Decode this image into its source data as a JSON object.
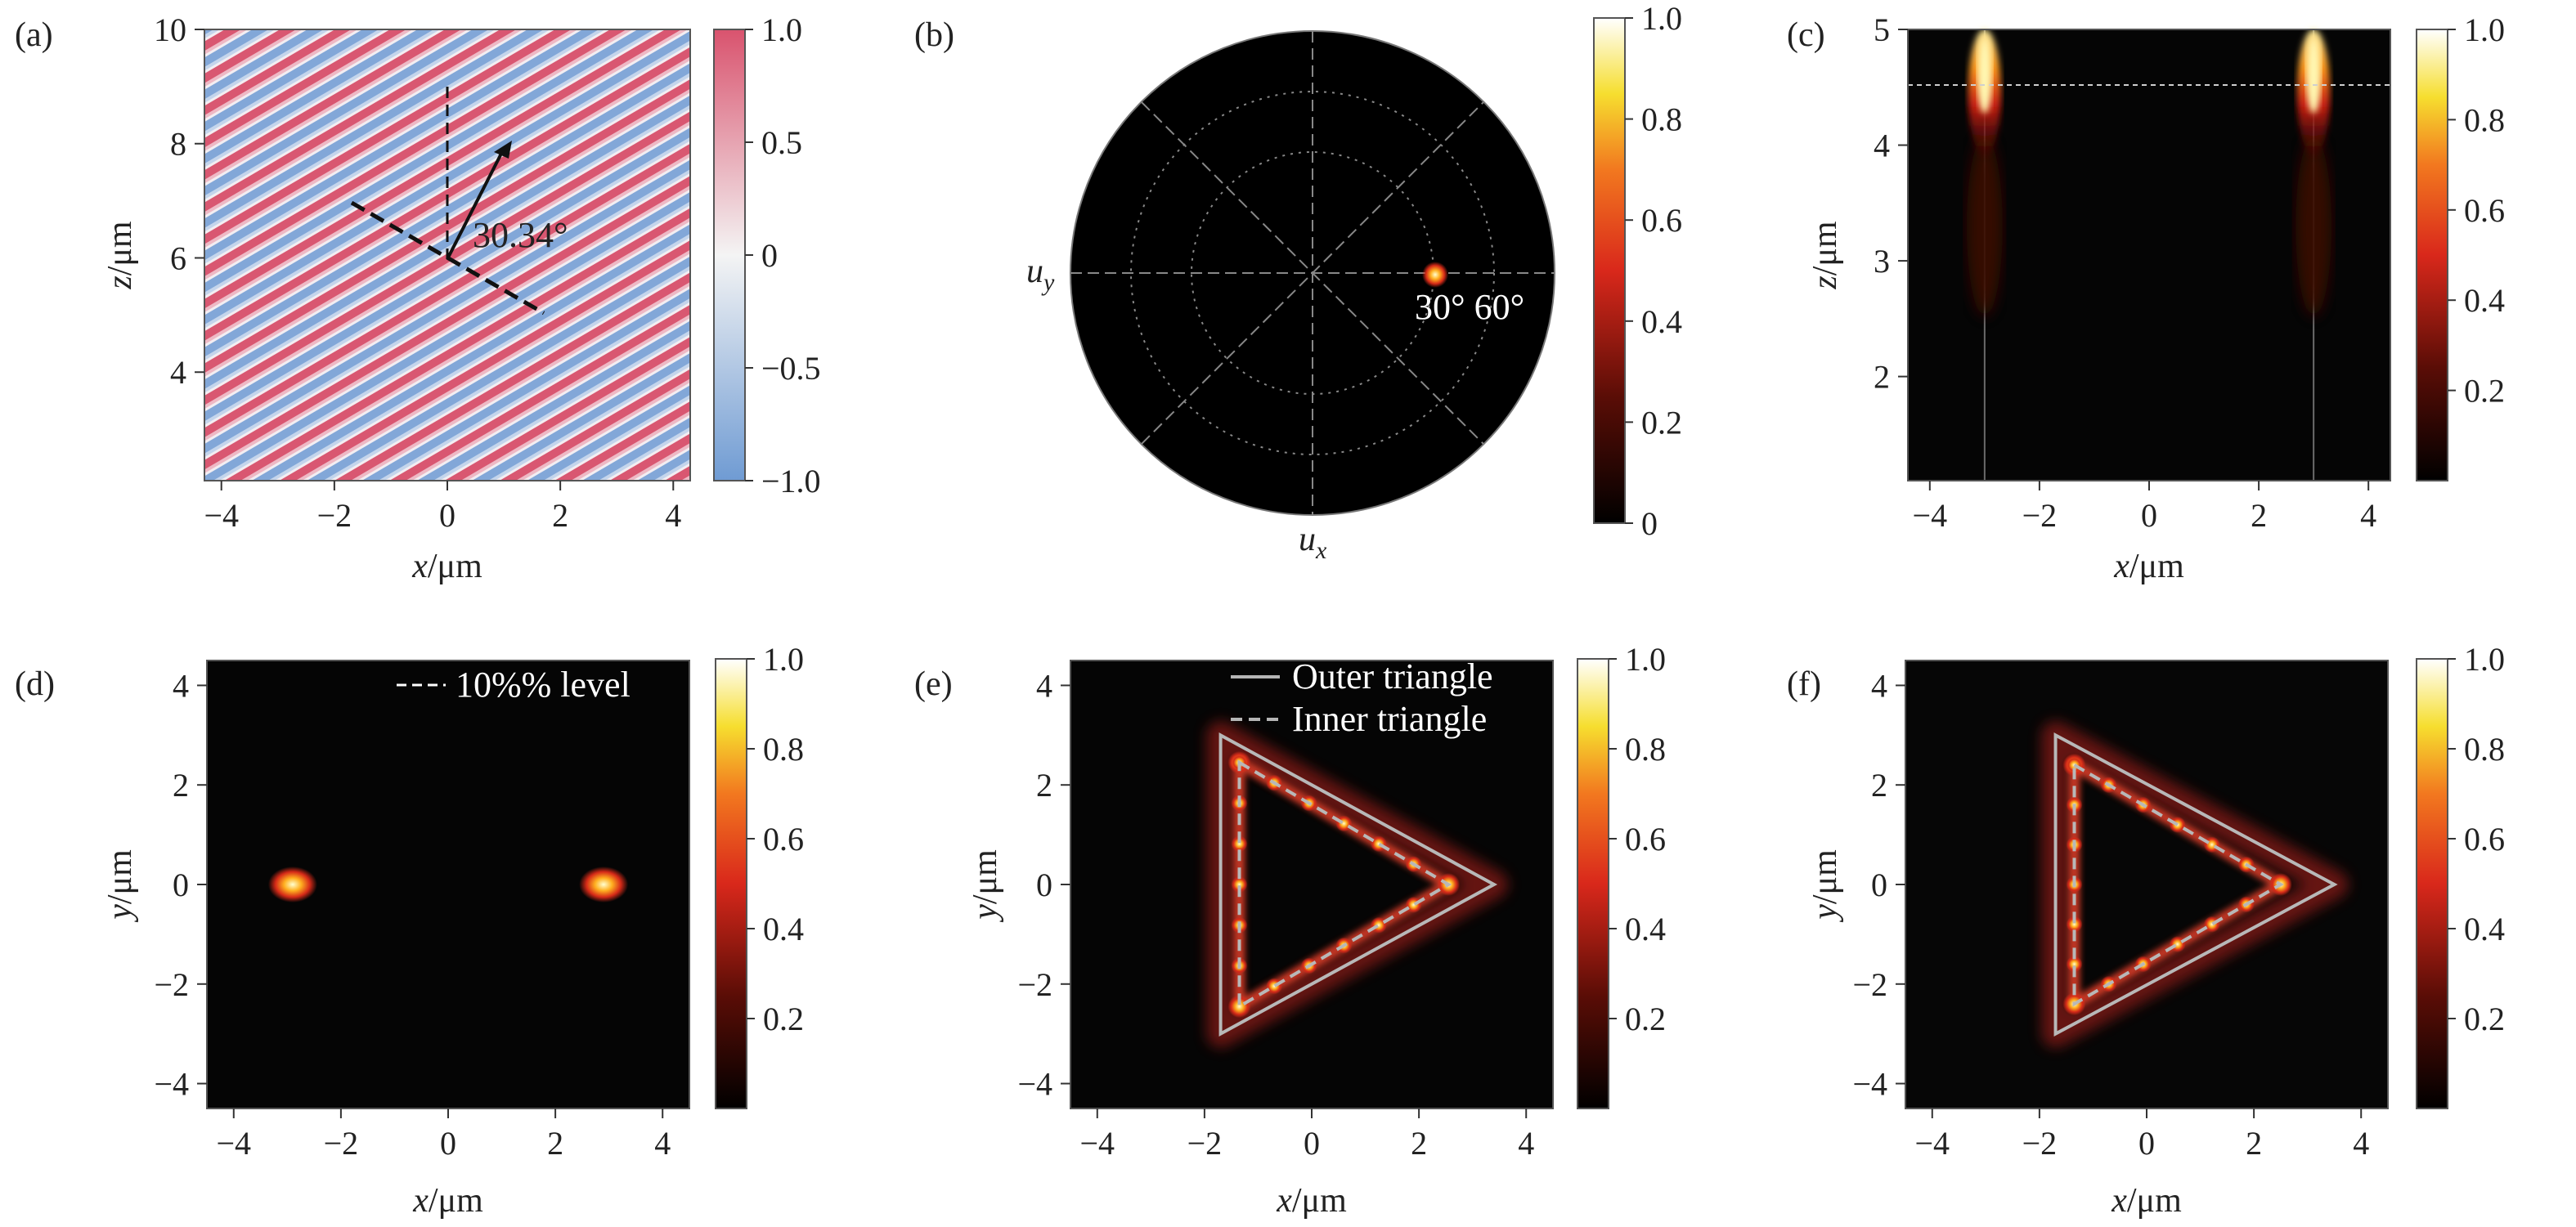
{
  "panels": {
    "a": {
      "label": "(a)",
      "xlabel": "x/μm",
      "ylabel": "z/μm",
      "xticks": [
        "−4",
        "−2",
        "0",
        "2",
        "4"
      ],
      "yticks": [
        "4",
        "6",
        "8",
        "10"
      ],
      "colorbar_ticks": [
        "1.0",
        "0.5",
        "0",
        "−0.5",
        "−1.0"
      ],
      "annotation": "30.34°"
    },
    "b": {
      "label": "(b)",
      "ux_label": "u",
      "ux_sub": "x",
      "uy_label": "u",
      "uy_sub": "y",
      "spot_label": "30° 60°",
      "colorbar_ticks": [
        "1.0",
        "0.8",
        "0.6",
        "0.4",
        "0.2",
        "0"
      ]
    },
    "c": {
      "label": "(c)",
      "xlabel": "x/μm",
      "ylabel": "z/μm",
      "xticks": [
        "−4",
        "−2",
        "0",
        "2",
        "4"
      ],
      "yticks": [
        "2",
        "3",
        "4",
        "5"
      ],
      "colorbar_ticks": [
        "1.0",
        "0.8",
        "0.6",
        "0.4",
        "0.2"
      ]
    },
    "d": {
      "label": "(d)",
      "xlabel": "x/μm",
      "ylabel": "y/μm",
      "xticks": [
        "−4",
        "−2",
        "0",
        "2",
        "4"
      ],
      "yticks": [
        "−4",
        "−2",
        "0",
        "2",
        "4"
      ],
      "legend": "10%% level",
      "colorbar_ticks": [
        "1.0",
        "0.8",
        "0.6",
        "0.4",
        "0.2"
      ]
    },
    "e": {
      "label": "(e)",
      "xlabel": "x/μm",
      "ylabel": "y/μm",
      "xticks": [
        "−4",
        "−2",
        "0",
        "2",
        "4"
      ],
      "yticks": [
        "−4",
        "−2",
        "0",
        "2",
        "4"
      ],
      "legend": [
        "Outer triangle",
        "Inner triangle"
      ],
      "colorbar_ticks": [
        "1.0",
        "0.8",
        "0.6",
        "0.4",
        "0.2"
      ]
    },
    "f": {
      "label": "(f)",
      "xlabel": "x/μm",
      "ylabel": "y/μm",
      "xticks": [
        "−4",
        "−2",
        "0",
        "2",
        "4"
      ],
      "yticks": [
        "−4",
        "−2",
        "0",
        "2",
        "4"
      ],
      "colorbar_ticks": [
        "1.0",
        "0.8",
        "0.6",
        "0.4",
        "0.2"
      ]
    }
  },
  "colors": {
    "hot_low": "#000000",
    "hot_mid": "#e8301c",
    "hot_high": "#ffffff",
    "div_pos": "#d9536e",
    "div_neg": "#6f9bd3",
    "div_zero": "#f4f4f4"
  },
  "chart_data": [
    {
      "type": "heatmap",
      "panel": "a",
      "description_values": {
        "tilt_deg": 30.34
      },
      "xlim": [
        -4.3,
        4.3
      ],
      "ylim": [
        2.1,
        10
      ],
      "colorbar_range": [
        -1.0,
        1.0
      ],
      "reference_lines": {
        "vertical_x": 0,
        "dashed_origin": [
          0,
          6
        ]
      }
    },
    {
      "type": "heatmap",
      "panel": "b",
      "polar": true,
      "rings": 2,
      "spokes_deg": [
        0,
        45,
        90,
        135
      ],
      "spot": {
        "theta_deg": 30,
        "phi_deg": 60
      },
      "colorbar_range": [
        0,
        1.0
      ]
    },
    {
      "type": "heatmap",
      "panel": "c",
      "xlim": [
        -4.4,
        4.4
      ],
      "ylim": [
        1.1,
        5
      ],
      "beams_x": [
        -3,
        3
      ],
      "focus_z": 4.55,
      "colorbar_range": [
        0,
        1.0
      ]
    },
    {
      "type": "heatmap",
      "panel": "d",
      "xlim": [
        -4.5,
        4.5
      ],
      "ylim": [
        -4.5,
        4.5
      ],
      "spots": [
        [
          -2.9,
          0
        ],
        [
          2.9,
          0
        ]
      ],
      "colorbar_range": [
        0,
        1.0
      ]
    },
    {
      "type": "heatmap",
      "panel": "e",
      "xlim": [
        -4.5,
        4.5
      ],
      "ylim": [
        -4.5,
        4.5
      ],
      "outer_triangle": [
        [
          -1.7,
          3.0
        ],
        [
          3.4,
          0
        ],
        [
          -1.7,
          -3.0
        ]
      ],
      "inner_triangle": [
        [
          -1.35,
          2.45
        ],
        [
          2.55,
          0
        ],
        [
          -1.35,
          -2.45
        ]
      ],
      "colorbar_range": [
        0,
        1.0
      ]
    },
    {
      "type": "heatmap",
      "panel": "f",
      "xlim": [
        -4.5,
        4.5
      ],
      "ylim": [
        -4.5,
        4.5
      ],
      "outer_triangle": [
        [
          -1.7,
          3.0
        ],
        [
          3.5,
          0
        ],
        [
          -1.7,
          -3.0
        ]
      ],
      "inner_triangle": [
        [
          -1.35,
          2.4
        ],
        [
          2.5,
          0
        ],
        [
          -1.35,
          -2.4
        ]
      ],
      "colorbar_range": [
        0,
        1.0
      ]
    }
  ]
}
